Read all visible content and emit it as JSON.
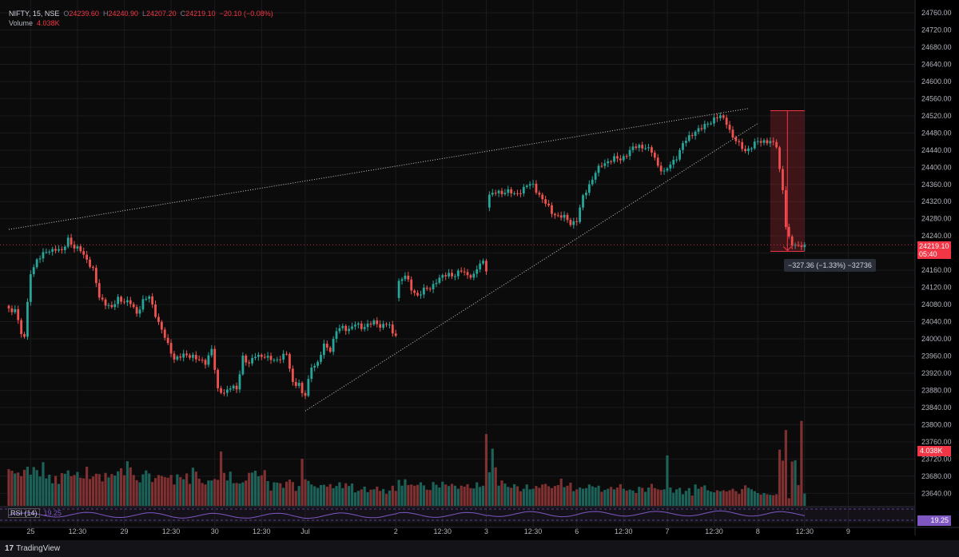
{
  "header": {
    "symbol": "NIFTY, 15, NSE",
    "open_label": "O",
    "open": "24239.60",
    "high_label": "H",
    "high": "24240.90",
    "low_label": "L",
    "low": "24207.20",
    "close_label": "C",
    "close": "24219.10",
    "change": "−20.10 (−0.08%)",
    "volume_label": "Volume",
    "volume": "4.038K"
  },
  "price_tag": {
    "price": "24219.10",
    "countdown": "05:40"
  },
  "volume_tag": "4.038K",
  "rsi": {
    "label": "RSI (14)",
    "value": "19.25",
    "tag": "19.25"
  },
  "measure_label": "−327.36 (−1.33%) −32736",
  "brand": {
    "logo": "17",
    "name": "TradingView"
  },
  "colors": {
    "up": "#26a69a",
    "down": "#ef5350",
    "background": "#000000",
    "rsi": "#7e57c2"
  },
  "chart_data": {
    "type": "candlestick",
    "symbol": "NIFTY",
    "interval": "15",
    "exchange": "NSE",
    "y_ticks": [
      24760,
      24720,
      24680,
      24640,
      24600,
      24560,
      24520,
      24480,
      24440,
      24400,
      24360,
      24320,
      24280,
      24240,
      24200,
      24160,
      24120,
      24080,
      24040,
      24000,
      23960,
      23920,
      23880,
      23840,
      23800,
      23760,
      23720,
      23680,
      23640
    ],
    "y_tick_labels": [
      "24760.00",
      "24720.00",
      "24680.00",
      "24640.00",
      "24600.00",
      "24560.00",
      "24520.00",
      "24480.00",
      "24440.00",
      "24400.00",
      "24360.00",
      "24320.00",
      "24280.00",
      "24240.00",
      "24200.00",
      "24160.00",
      "24120.00",
      "24080.00",
      "24040.00",
      "24000.00",
      "23960.00",
      "23920.00",
      "23880.00",
      "23840.00",
      "23800.00",
      "23760.00",
      "23720.00",
      "23680.00",
      "23640.00"
    ],
    "ylim": [
      23620,
      24775
    ],
    "x_ticks": [
      {
        "label": "25",
        "bar": 7
      },
      {
        "label": "12:30",
        "bar": 22
      },
      {
        "label": "29",
        "bar": 37
      },
      {
        "label": "12:30",
        "bar": 52
      },
      {
        "label": "30",
        "bar": 66
      },
      {
        "label": "12:30",
        "bar": 81
      },
      {
        "label": "Jul",
        "bar": 95
      },
      {
        "label": "2",
        "bar": 124
      },
      {
        "label": "12:30",
        "bar": 139
      },
      {
        "label": "3",
        "bar": 153
      },
      {
        "label": "12:30",
        "bar": 168
      },
      {
        "label": "6",
        "bar": 182
      },
      {
        "label": "12:30",
        "bar": 197
      },
      {
        "label": "7",
        "bar": 211
      },
      {
        "label": "12:30",
        "bar": 226
      },
      {
        "label": "8",
        "bar": 240
      },
      {
        "label": "12:30",
        "bar": 255
      },
      {
        "label": "9",
        "bar": 269
      }
    ],
    "anchors": [
      [
        0,
        24068
      ],
      [
        1,
        24058
      ],
      [
        2,
        24075
      ],
      [
        4,
        24012
      ],
      [
        5,
        24005
      ],
      [
        7,
        24154
      ],
      [
        9,
        24185
      ],
      [
        11,
        24196
      ],
      [
        13,
        24207
      ],
      [
        15,
        24210
      ],
      [
        17,
        24202
      ],
      [
        19,
        24235
      ],
      [
        21,
        24212
      ],
      [
        23,
        24206
      ],
      [
        25,
        24186
      ],
      [
        27,
        24160
      ],
      [
        29,
        24097
      ],
      [
        31,
        24084
      ],
      [
        33,
        24070
      ],
      [
        35,
        24095
      ],
      [
        37,
        24088
      ],
      [
        39,
        24082
      ],
      [
        41,
        24060
      ],
      [
        43,
        24089
      ],
      [
        45,
        24097
      ],
      [
        47,
        24058
      ],
      [
        49,
        24020
      ],
      [
        51,
        23985
      ],
      [
        53,
        23955
      ],
      [
        55,
        23958
      ],
      [
        57,
        23962
      ],
      [
        59,
        23961
      ],
      [
        61,
        23948
      ],
      [
        63,
        23945
      ],
      [
        65,
        23978
      ],
      [
        67,
        23878
      ],
      [
        69,
        23876
      ],
      [
        71,
        23888
      ],
      [
        73,
        23881
      ],
      [
        75,
        23960
      ],
      [
        77,
        23940
      ],
      [
        79,
        23961
      ],
      [
        81,
        23962
      ],
      [
        83,
        23954
      ],
      [
        85,
        23950
      ],
      [
        87,
        23957
      ],
      [
        89,
        23963
      ],
      [
        91,
        23898
      ],
      [
        93,
        23896
      ],
      [
        94,
        23870
      ],
      [
        95,
        23868
      ],
      [
        97,
        23938
      ],
      [
        99,
        23942
      ],
      [
        101,
        23985
      ],
      [
        103,
        23976
      ],
      [
        105,
        24018
      ],
      [
        107,
        24027
      ],
      [
        109,
        24023
      ],
      [
        111,
        24033
      ],
      [
        113,
        24027
      ],
      [
        115,
        24034
      ],
      [
        117,
        24037
      ],
      [
        119,
        24031
      ],
      [
        121,
        24036
      ],
      [
        122,
        24030
      ],
      [
        123,
        24008
      ],
      [
        124,
        24012
      ],
      [
        125,
        24135
      ],
      [
        127,
        24148
      ],
      [
        129,
        24115
      ],
      [
        131,
        24102
      ],
      [
        133,
        24113
      ],
      [
        135,
        24118
      ],
      [
        137,
        24136
      ],
      [
        139,
        24144
      ],
      [
        141,
        24152
      ],
      [
        143,
        24148
      ],
      [
        145,
        24158
      ],
      [
        147,
        24150
      ],
      [
        149,
        24147
      ],
      [
        151,
        24175
      ],
      [
        152,
        24180
      ],
      [
        153,
        24164
      ],
      [
        154,
        24335
      ],
      [
        156,
        24340
      ],
      [
        158,
        24342
      ],
      [
        160,
        24345
      ],
      [
        162,
        24335
      ],
      [
        164,
        24345
      ],
      [
        166,
        24358
      ],
      [
        168,
        24358
      ],
      [
        170,
        24336
      ],
      [
        172,
        24315
      ],
      [
        174,
        24295
      ],
      [
        176,
        24287
      ],
      [
        178,
        24283
      ],
      [
        180,
        24270
      ],
      [
        182,
        24276
      ],
      [
        184,
        24330
      ],
      [
        186,
        24360
      ],
      [
        188,
        24388
      ],
      [
        190,
        24405
      ],
      [
        192,
        24415
      ],
      [
        194,
        24420
      ],
      [
        196,
        24418
      ],
      [
        198,
        24432
      ],
      [
        200,
        24444
      ],
      [
        202,
        24450
      ],
      [
        204,
        24447
      ],
      [
        206,
        24435
      ],
      [
        208,
        24405
      ],
      [
        210,
        24388
      ],
      [
        212,
        24405
      ],
      [
        214,
        24425
      ],
      [
        216,
        24454
      ],
      [
        218,
        24470
      ],
      [
        220,
        24486
      ],
      [
        222,
        24490
      ],
      [
        224,
        24502
      ],
      [
        226,
        24514
      ],
      [
        228,
        24518
      ],
      [
        230,
        24505
      ],
      [
        232,
        24470
      ],
      [
        234,
        24452
      ],
      [
        236,
        24440
      ],
      [
        238,
        24447
      ],
      [
        240,
        24460
      ],
      [
        242,
        24462
      ],
      [
        244,
        24458
      ],
      [
        246,
        24450
      ],
      [
        247,
        24395
      ],
      [
        248,
        24350
      ],
      [
        249,
        24262
      ],
      [
        250,
        24232
      ],
      [
        251,
        24219
      ]
    ],
    "volume": {
      "ylim": [
        0,
        40000
      ],
      "values": [
        12000,
        11500,
        10600,
        10900,
        9700,
        11800,
        12800,
        10200,
        12700,
        11700,
        9600,
        14300,
        9000,
        10200,
        7400,
        9800,
        7200,
        10700,
        10500,
        11600,
        9700,
        10100,
        11100,
        9200,
        9000,
        12800,
        8800,
        9600,
        10500,
        10400,
        8000,
        10800,
        9300,
        10400,
        9900,
        11300,
        12300,
        10000,
        14600,
        12600,
        10100,
        8400,
        7700,
        10300,
        11600,
        10600,
        7800,
        9100,
        10100,
        9800,
        9400,
        9200,
        10100,
        7000,
        10300,
        9400,
        8700,
        10600,
        7200,
        12500,
        11200,
        8900,
        7500,
        7000,
        8300,
        8300,
        8800,
        8500,
        13200,
        10800,
        8300,
        11200,
        7400,
        7500,
        7300,
        7700,
        8300,
        10800,
        10900,
        11500,
        9700,
        10000,
        11700,
        8100,
        5000,
        7700,
        7600,
        7400,
        5900,
        7900,
        8600,
        7800,
        4900,
        6500,
        10600,
        8700,
        8200,
        7000,
        6400,
        5900,
        6800,
        6900,
        6300,
        7100,
        5800,
        6500,
        7700,
        5800,
        7400,
        6500,
        7300,
        4400,
        4900,
        5400,
        6300,
        4500,
        5300,
        5400,
        6300,
        4900,
        5500,
        3900,
        5000,
        6600,
        4900,
        8500,
        6600,
        8700,
        6800,
        7000,
        6600,
        6900,
        7700,
        6700,
        5300,
        5200,
        7800,
        6900,
        6000,
        7900,
        7000,
        6500,
        7200,
        6600,
        5600,
        6600,
        6300,
        7100,
        5800,
        5700,
        7700,
        6200,
        6600,
        10000,
        11000,
        18700,
        12600,
        6600,
        8300,
        7300,
        6200,
        5900,
        7100,
        6400,
        4800,
        5600,
        7000,
        5400,
        5600,
        6500,
        5900,
        7000,
        7200,
        6400,
        5800,
        6500,
        6800,
        8900,
        6100,
        6600,
        7600,
        4800,
        5400,
        6000,
        5600,
        5800,
        7000,
        6400,
        6000,
        6600,
        4600,
        5200,
        5600,
        6200,
        5400,
        6000,
        7100,
        5600,
        5000,
        5300,
        5000,
        4200,
        6200,
        5900,
        4600,
        6000,
        7200,
        5800,
        5400,
        5200,
        5400,
        5600,
        6000,
        4300,
        5400,
        5900,
        3800,
        4900,
        5800,
        3400,
        7000,
        5600,
        6200,
        6700,
        5100,
        4700,
        4400,
        5100,
        4800,
        5100,
        4700,
        5100,
        5600,
        4800,
        3900,
        5500,
        6700,
        5900,
        5400,
        4800,
        4200,
        3700,
        4200,
        3800,
        3600,
        3500,
        3800,
        3200,
        3200,
        3500,
        2500,
        14500,
        14900,
        6800,
        27800,
        4038
      ]
    },
    "volume_spikes": {
      "153": 23500,
      "68": 17800,
      "94": 15400,
      "247": 18400,
      "248": 14800,
      "249": 24800,
      "211": 16500
    },
    "trendlines": [
      {
        "from": [
          0,
          24255
        ],
        "to": [
          237,
          24537
        ]
      },
      {
        "from": [
          95,
          23832
        ],
        "to": [
          240,
          24502
        ]
      }
    ],
    "reference_price": 24219.1,
    "measure": {
      "bar_from": 244,
      "bar_to": 255,
      "price_from": 24532,
      "price_to": 24204
    },
    "rsi_value": 19.25
  }
}
